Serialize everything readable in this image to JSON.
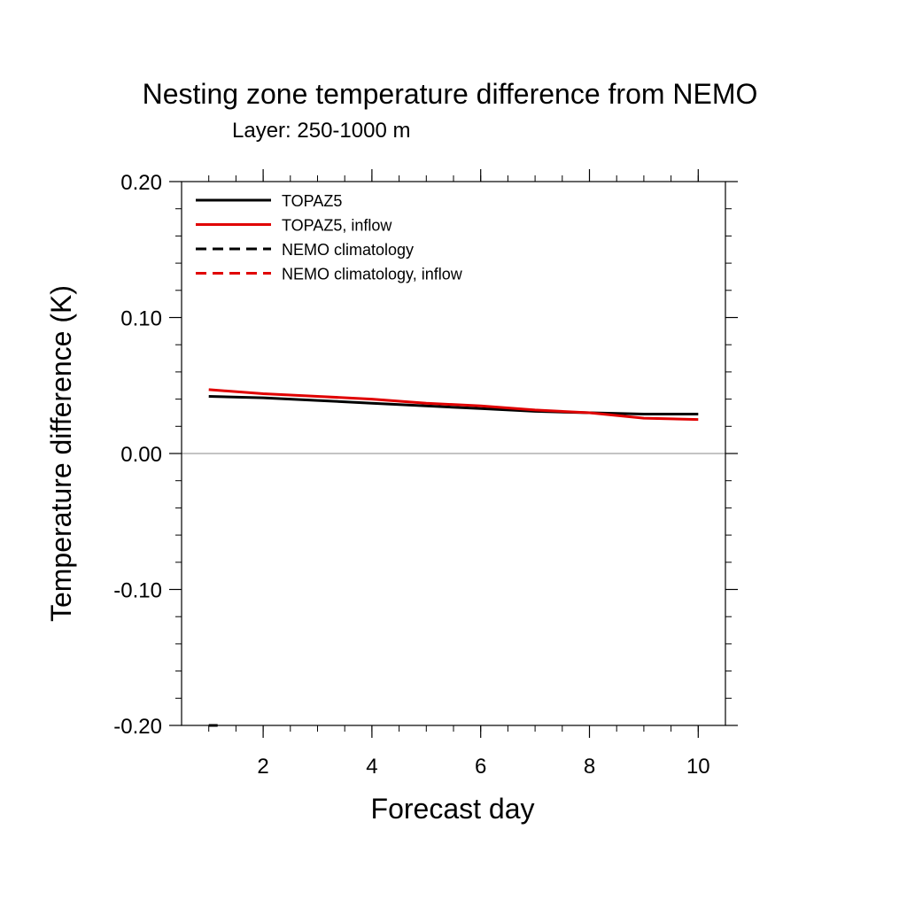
{
  "chart_data": {
    "type": "line",
    "title": "Nesting zone temperature difference from NEMO",
    "subtitle": "Layer: 250-1000 m",
    "xlabel": "Forecast day",
    "ylabel": "Temperature difference (K)",
    "xlim": [
      0.5,
      10.5
    ],
    "ylim": [
      -0.2,
      0.2
    ],
    "x_ticks": [
      2,
      4,
      6,
      8,
      10
    ],
    "x_tick_labels": [
      "2",
      "4",
      "6",
      "8",
      "10"
    ],
    "y_ticks": [
      -0.2,
      -0.1,
      0.0,
      0.1,
      0.2
    ],
    "y_tick_labels": [
      "-0.20",
      "-0.10",
      "0.00",
      "0.10",
      "0.20"
    ],
    "legend_position": "top-left",
    "reference_line": 0.0,
    "series": [
      {
        "name": "TOPAZ5",
        "color": "#000000",
        "dash": "solid",
        "x": [
          1,
          2,
          3,
          4,
          5,
          6,
          7,
          8,
          9,
          10
        ],
        "y": [
          0.042,
          0.041,
          0.039,
          0.037,
          0.035,
          0.033,
          0.031,
          0.03,
          0.029,
          0.029
        ]
      },
      {
        "name": "TOPAZ5, inflow",
        "color": "#e00000",
        "dash": "solid",
        "x": [
          1,
          2,
          3,
          4,
          5,
          6,
          7,
          8,
          9,
          10
        ],
        "y": [
          0.047,
          0.044,
          0.042,
          0.04,
          0.037,
          0.035,
          0.032,
          0.03,
          0.026,
          0.025
        ]
      },
      {
        "name": "NEMO climatology",
        "color": "#000000",
        "dash": "dashed",
        "x": [
          1,
          1.1,
          1.2
        ],
        "y": [
          -0.2,
          -0.2,
          -0.2
        ]
      },
      {
        "name": "NEMO climatology, inflow",
        "color": "#e00000",
        "dash": "dashed",
        "x": [],
        "y": []
      }
    ]
  }
}
